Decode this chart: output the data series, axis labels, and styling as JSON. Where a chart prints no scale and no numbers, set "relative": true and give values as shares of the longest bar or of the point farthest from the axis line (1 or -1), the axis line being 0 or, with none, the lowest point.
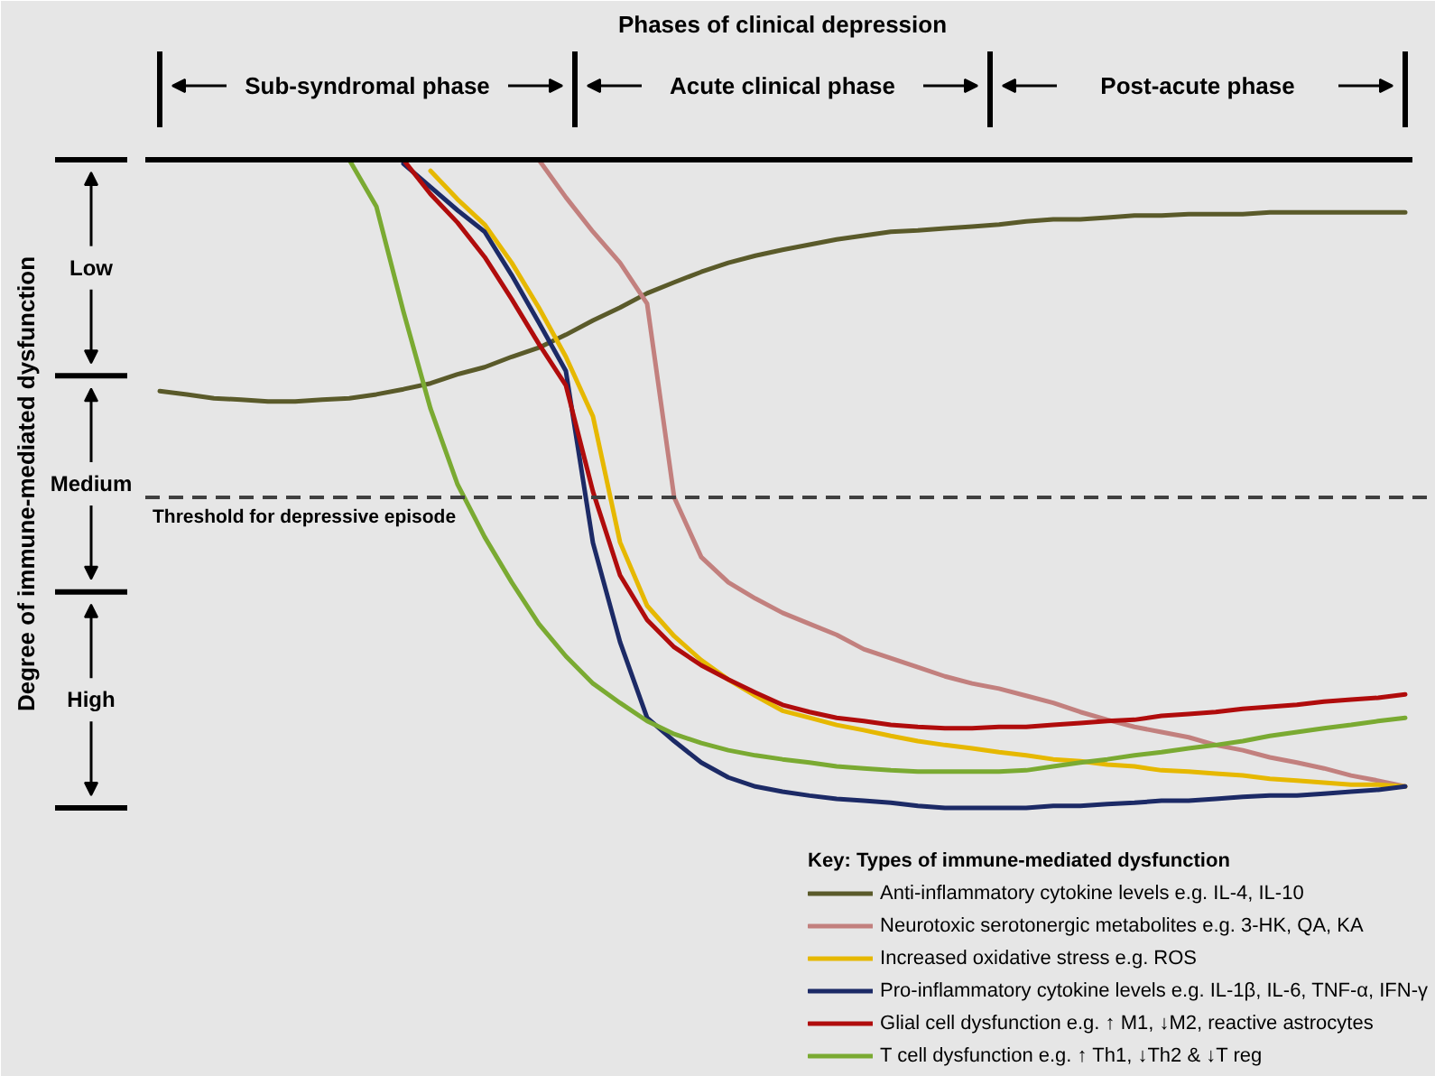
{
  "chart_data": {
    "type": "line",
    "relative": true,
    "title": "Phases of clinical depression",
    "ylabel": "Degree of immune-mediated dysfunction",
    "legend_title": "Key: Types of immune-mediated dysfunction",
    "legend": "bottom right",
    "categories": [
      null,
      null,
      null,
      null,
      null,
      null,
      null,
      null,
      null,
      null,
      null,
      null,
      null,
      null,
      null,
      null,
      null,
      null,
      null,
      null,
      null,
      null,
      null,
      null,
      null,
      null,
      null,
      null,
      null,
      null,
      null,
      null,
      null,
      null,
      null,
      null,
      null,
      null,
      null,
      null,
      null,
      null,
      null,
      null,
      null,
      null,
      null
    ],
    "series": [
      {
        "name": "Anti-inflammatory cytokine levels e.g. IL-4, IL-10",
        "color": "#5a5a2a",
        "values": [
          -0.357,
          -0.362,
          -0.368,
          -0.37,
          -0.373,
          -0.373,
          -0.37,
          -0.368,
          -0.362,
          -0.354,
          -0.345,
          -0.331,
          -0.32,
          -0.304,
          -0.29,
          -0.27,
          -0.248,
          -0.228,
          -0.206,
          -0.189,
          -0.173,
          -0.159,
          -0.148,
          -0.139,
          -0.131,
          -0.123,
          -0.117,
          -0.111,
          -0.109,
          -0.106,
          -0.103,
          -0.1,
          -0.095,
          -0.092,
          -0.092,
          -0.089,
          -0.086,
          -0.086,
          -0.084,
          -0.084,
          -0.084,
          -0.081,
          -0.081,
          -0.081,
          -0.081,
          -0.081,
          -0.081
        ]
      },
      {
        "name": "Neurotoxic serotonergic metabolites e.g. 3-HK, QA, KA",
        "color": "#c2807e",
        "values": [
          null,
          null,
          null,
          null,
          null,
          null,
          null,
          null,
          null,
          null,
          null,
          null,
          null,
          null,
          0,
          -0.058,
          -0.111,
          -0.159,
          -0.222,
          -0.521,
          -0.613,
          -0.652,
          -0.677,
          -0.699,
          -0.716,
          -0.733,
          -0.755,
          -0.769,
          -0.783,
          -0.797,
          -0.808,
          -0.816,
          -0.827,
          -0.838,
          -0.852,
          -0.864,
          -0.875,
          -0.883,
          -0.891,
          -0.903,
          -0.911,
          -0.922,
          -0.93,
          -0.939,
          -0.95,
          -0.958,
          -0.967
        ]
      },
      {
        "name": "Increased oxidative stress e.g. ROS",
        "color": "#e6b800",
        "values": [
          null,
          null,
          null,
          null,
          null,
          null,
          null,
          null,
          null,
          null,
          -0.017,
          -0.061,
          -0.1,
          -0.159,
          -0.228,
          -0.304,
          -0.396,
          -0.59,
          -0.688,
          -0.735,
          -0.772,
          -0.802,
          -0.827,
          -0.85,
          -0.861,
          -0.872,
          -0.88,
          -0.889,
          -0.897,
          -0.903,
          -0.908,
          -0.914,
          -0.919,
          -0.925,
          -0.928,
          -0.933,
          -0.936,
          -0.942,
          -0.944,
          -0.947,
          -0.95,
          -0.955,
          -0.958,
          -0.961,
          -0.964,
          -0.964,
          -0.967
        ]
      },
      {
        "name": "Pro-inflammatory cytokine levels e.g. IL-1β, IL-6, TNF-α, IFN-γ",
        "color": "#1c2a66",
        "values": [
          null,
          null,
          null,
          null,
          null,
          null,
          null,
          null,
          null,
          -0.006,
          -0.042,
          -0.078,
          -0.111,
          -0.178,
          -0.251,
          -0.326,
          -0.591,
          -0.744,
          -0.861,
          -0.897,
          -0.93,
          -0.953,
          -0.967,
          -0.975,
          -0.981,
          -0.986,
          -0.989,
          -0.992,
          -0.997,
          -1,
          -1,
          -1,
          -1,
          -0.997,
          -0.997,
          -0.994,
          -0.992,
          -0.989,
          -0.989,
          -0.986,
          -0.983,
          -0.981,
          -0.981,
          -0.978,
          -0.975,
          -0.972,
          -0.967
        ]
      },
      {
        "name": "Glial cell dysfunction e.g. ↑ M1, ↓M2, reactive astrocytes",
        "color": "#b00c0c",
        "values": [
          null,
          null,
          null,
          null,
          null,
          null,
          null,
          null,
          null,
          0,
          -0.053,
          -0.097,
          -0.15,
          -0.215,
          -0.284,
          -0.348,
          -0.512,
          -0.641,
          -0.71,
          -0.752,
          -0.78,
          -0.802,
          -0.822,
          -0.841,
          -0.852,
          -0.861,
          -0.866,
          -0.872,
          -0.875,
          -0.877,
          -0.877,
          -0.875,
          -0.875,
          -0.872,
          -0.869,
          -0.866,
          -0.864,
          -0.858,
          -0.855,
          -0.852,
          -0.847,
          -0.844,
          -0.841,
          -0.836,
          -0.833,
          -0.83,
          -0.825
        ]
      },
      {
        "name": "T cell dysfunction e.g. ↑ Th1, ↓Th2 & ↓T reg",
        "color": "#7aaa32",
        "values": [
          null,
          null,
          null,
          null,
          null,
          null,
          null,
          0,
          -0.072,
          -0.234,
          -0.384,
          -0.501,
          -0.582,
          -0.652,
          -0.716,
          -0.766,
          -0.808,
          -0.838,
          -0.866,
          -0.886,
          -0.9,
          -0.911,
          -0.919,
          -0.925,
          -0.93,
          -0.936,
          -0.939,
          -0.942,
          -0.944,
          -0.944,
          -0.944,
          -0.944,
          -0.942,
          -0.936,
          -0.93,
          -0.925,
          -0.919,
          -0.914,
          -0.908,
          -0.903,
          -0.897,
          -0.889,
          -0.883,
          -0.877,
          -0.872,
          -0.866,
          -0.861
        ]
      }
    ],
    "ref_lines": [
      {
        "axis": "y",
        "value": -0.521,
        "label": "Threshold for depressive episode",
        "color": "#404040",
        "line_style": "dashed"
      }
    ],
    "annotations": [
      "Sub-syndromal phase",
      "Acute clinical phase",
      "Post-acute phase",
      "Low",
      "Medium",
      "High"
    ]
  }
}
